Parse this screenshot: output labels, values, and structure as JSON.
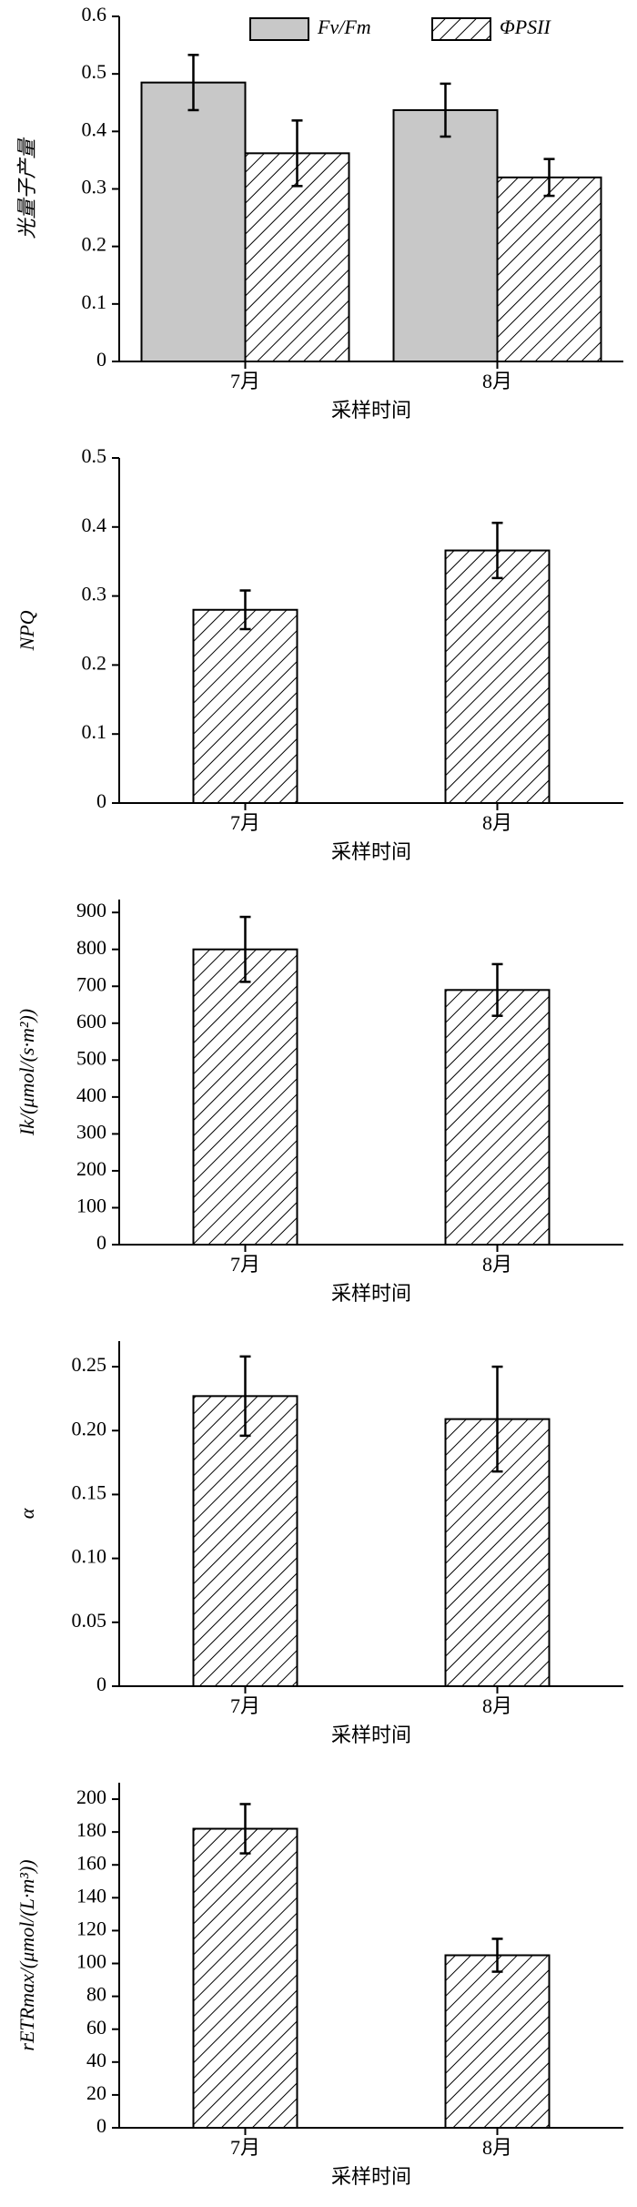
{
  "chart_data": [
    {
      "type": "bar",
      "ylabel": "光量子产量",
      "xlabel": "采样时间",
      "categories": [
        "7月",
        "8月"
      ],
      "series": [
        {
          "name": "Fv/Fm",
          "color": "#c8c8c8",
          "pattern": "solid",
          "values": [
            0.485,
            0.437
          ],
          "errors": [
            0.048,
            0.046
          ]
        },
        {
          "name": "ΦPSII",
          "color": "#ffffff",
          "pattern": "hatch",
          "values": [
            0.362,
            0.32
          ],
          "errors": [
            0.057,
            0.032
          ]
        }
      ],
      "ylim": [
        0,
        0.6
      ],
      "yticks": [
        0,
        0.1,
        0.2,
        0.3,
        0.4,
        0.5,
        0.6
      ],
      "legend": "top"
    },
    {
      "type": "bar",
      "ylabel": "NPQ",
      "xlabel": "采样时间",
      "categories": [
        "7月",
        "8月"
      ],
      "series": [
        {
          "color": "#ffffff",
          "pattern": "hatch",
          "values": [
            0.28,
            0.366
          ],
          "errors": [
            0.028,
            0.04
          ]
        }
      ],
      "ylim": [
        0,
        0.5
      ],
      "yticks": [
        0,
        0.1,
        0.2,
        0.3,
        0.4,
        0.5
      ]
    },
    {
      "type": "bar",
      "ylabel": "Ik/(μmol/(s·m²))",
      "xlabel": "采样时间",
      "categories": [
        "7月",
        "8月"
      ],
      "series": [
        {
          "color": "#ffffff",
          "pattern": "hatch",
          "values": [
            800,
            690
          ],
          "errors": [
            88,
            70
          ]
        }
      ],
      "ylim": [
        0,
        935
      ],
      "yticks": [
        0,
        100,
        200,
        300,
        400,
        500,
        600,
        700,
        800,
        900
      ]
    },
    {
      "type": "bar",
      "ylabel": "α",
      "xlabel": "采样时间",
      "categories": [
        "7月",
        "8月"
      ],
      "series": [
        {
          "color": "#ffffff",
          "pattern": "hatch",
          "values": [
            0.227,
            0.209
          ],
          "errors": [
            0.031,
            0.041
          ]
        }
      ],
      "ylim": [
        0,
        0.27
      ],
      "yticks": [
        0,
        0.05,
        {
          "value": 0.1,
          "label": "0.10"
        },
        0.15,
        {
          "value": 0.2,
          "label": "0.20"
        },
        0.25
      ]
    },
    {
      "type": "bar",
      "ylabel": "rETRmax/(μmol/(L·m³))",
      "xlabel": "采样时间",
      "categories": [
        "7月",
        "8月"
      ],
      "series": [
        {
          "color": "#ffffff",
          "pattern": "hatch",
          "values": [
            182,
            105
          ],
          "errors": [
            15,
            10
          ]
        }
      ],
      "ylim": [
        0,
        210
      ],
      "yticks": [
        0,
        20,
        40,
        60,
        80,
        100,
        120,
        140,
        160,
        180,
        200
      ]
    }
  ]
}
